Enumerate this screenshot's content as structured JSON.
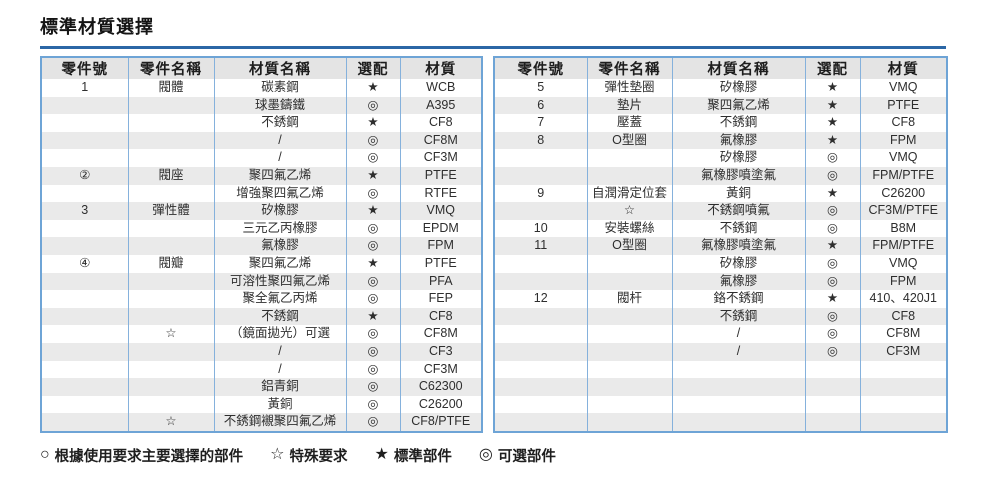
{
  "page": {
    "title": "標準材質選擇",
    "legend": [
      {
        "symbol": "○",
        "label": "根據使用要求主要選擇的部件"
      },
      {
        "symbol": "☆",
        "label": "特殊要求"
      },
      {
        "symbol": "★",
        "label": "標準部件"
      },
      {
        "symbol": "◎",
        "label": "可選部件"
      }
    ]
  },
  "colors": {
    "title_rule_blue": "#2b67a6",
    "table_border_blue": "#6ea4d6",
    "inner_line_blue": "#85b1dc",
    "stripe_gray": "#eaeaea",
    "header_gray": "#e4e4e4",
    "text_dark": "#2e2e2e"
  },
  "tables": [
    {
      "headers": [
        "零件號",
        "零件名稱",
        "材質名稱",
        "選配",
        "材質"
      ],
      "rows": [
        [
          "1",
          "閥體",
          "碳素鋼",
          "★",
          "WCB"
        ],
        [
          "",
          "",
          "球墨鑄鐵",
          "◎",
          "A395"
        ],
        [
          "",
          "",
          "不銹鋼",
          "★",
          "CF8"
        ],
        [
          "",
          "",
          "/",
          "◎",
          "CF8M"
        ],
        [
          "",
          "",
          "/",
          "◎",
          "CF3M"
        ],
        [
          "②",
          "閥座",
          "聚四氟乙烯",
          "★",
          "PTFE"
        ],
        [
          "",
          "",
          "增強聚四氟乙烯",
          "◎",
          "RTFE"
        ],
        [
          "3",
          "彈性體",
          "矽橡膠",
          "★",
          "VMQ"
        ],
        [
          "",
          "",
          "三元乙丙橡膠",
          "◎",
          "EPDM"
        ],
        [
          "",
          "",
          "氟橡膠",
          "◎",
          "FPM"
        ],
        [
          "④",
          "閥瓣",
          "聚四氟乙烯",
          "★",
          "PTFE"
        ],
        [
          "",
          "",
          "可溶性聚四氟乙烯",
          "◎",
          "PFA"
        ],
        [
          "",
          "",
          "聚全氟乙丙烯",
          "◎",
          "FEP"
        ],
        [
          "",
          "",
          "不銹鋼",
          "★",
          "CF8"
        ],
        [
          "",
          "☆",
          "（鏡面拋光）可選",
          "◎",
          "CF8M"
        ],
        [
          "",
          "",
          "/",
          "◎",
          "CF3"
        ],
        [
          "",
          "",
          "/",
          "◎",
          "CF3M"
        ],
        [
          "",
          "",
          "鋁青銅",
          "◎",
          "C62300"
        ],
        [
          "",
          "",
          "黃銅",
          "◎",
          "C26200"
        ],
        [
          "",
          "☆",
          "不銹鋼襯聚四氟乙烯",
          "◎",
          "CF8/PTFE"
        ]
      ]
    },
    {
      "headers": [
        "零件號",
        "零件名稱",
        "材質名稱",
        "選配",
        "材質"
      ],
      "rows": [
        [
          "5",
          "彈性墊圈",
          "矽橡膠",
          "★",
          "VMQ"
        ],
        [
          "6",
          "墊片",
          "聚四氟乙烯",
          "★",
          "PTFE"
        ],
        [
          "7",
          "壓蓋",
          "不銹鋼",
          "★",
          "CF8"
        ],
        [
          "8",
          "O型圈",
          "氟橡膠",
          "★",
          "FPM"
        ],
        [
          "",
          "",
          "矽橡膠",
          "◎",
          "VMQ"
        ],
        [
          "",
          "",
          "氟橡膠噴塗氟",
          "◎",
          "FPM/PTFE"
        ],
        [
          "9",
          "自潤滑定位套",
          "黃銅",
          "★",
          "C26200"
        ],
        [
          "",
          "☆",
          "不銹鋼噴氟",
          "◎",
          "CF3M/PTFE"
        ],
        [
          "10",
          "安裝螺絲",
          "不銹鋼",
          "◎",
          "B8M"
        ],
        [
          "11",
          "O型圈",
          "氟橡膠噴塗氟",
          "★",
          "FPM/PTFE"
        ],
        [
          "",
          "",
          "矽橡膠",
          "◎",
          "VMQ"
        ],
        [
          "",
          "",
          "氟橡膠",
          "◎",
          "FPM"
        ],
        [
          "12",
          "閥杆",
          "鉻不銹鋼",
          "★",
          "410、420J1"
        ],
        [
          "",
          "",
          "不銹鋼",
          "◎",
          "CF8"
        ],
        [
          "",
          "",
          "/",
          "◎",
          "CF8M"
        ],
        [
          "",
          "",
          "/",
          "◎",
          "CF3M"
        ],
        [
          "",
          "",
          "",
          "",
          ""
        ],
        [
          "",
          "",
          "",
          "",
          ""
        ],
        [
          "",
          "",
          "",
          "",
          ""
        ],
        [
          "",
          "",
          "",
          "",
          ""
        ]
      ]
    }
  ],
  "layout": {
    "left_col_widths": [
      87,
      86,
      132,
      54,
      82
    ],
    "right_col_widths": [
      93,
      85,
      133,
      55,
      87
    ]
  }
}
